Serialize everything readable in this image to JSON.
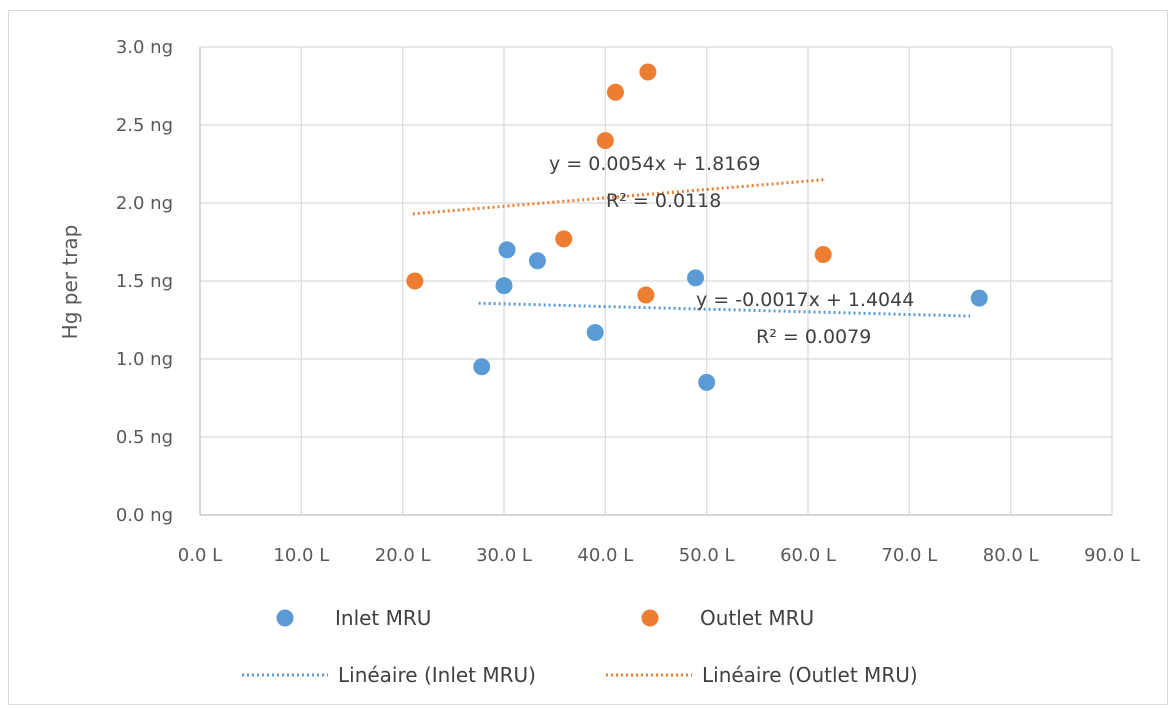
{
  "chart_data": {
    "type": "scatter",
    "title": "",
    "xlabel": "",
    "ylabel": "Hg per trap",
    "xlim": [
      0,
      90
    ],
    "ylim": [
      0,
      3.0
    ],
    "x_ticks": [
      "0.0 L",
      "10.0 L",
      "20.0 L",
      "30.0 L",
      "40.0 L",
      "50.0 L",
      "60.0 L",
      "70.0 L",
      "80.0 L",
      "90.0 L"
    ],
    "y_ticks": [
      "0.0 ng",
      "0.5 ng",
      "1.0 ng",
      "1.5 ng",
      "2.0 ng",
      "2.5 ng",
      "3.0 ng"
    ],
    "grid": true,
    "legend_position": "bottom",
    "series": [
      {
        "name": "Inlet MRU",
        "color": "#5b9bd5",
        "points": [
          {
            "x": 27.8,
            "y": 0.95
          },
          {
            "x": 30.0,
            "y": 1.47
          },
          {
            "x": 30.3,
            "y": 1.7
          },
          {
            "x": 33.3,
            "y": 1.63
          },
          {
            "x": 39.0,
            "y": 1.17
          },
          {
            "x": 48.9,
            "y": 1.52
          },
          {
            "x": 50.0,
            "y": 0.85
          },
          {
            "x": 76.9,
            "y": 1.39
          }
        ]
      },
      {
        "name": "Outlet MRU",
        "color": "#ed7d31",
        "points": [
          {
            "x": 21.2,
            "y": 1.5
          },
          {
            "x": 35.9,
            "y": 1.77
          },
          {
            "x": 40.0,
            "y": 2.4
          },
          {
            "x": 41.0,
            "y": 2.71
          },
          {
            "x": 44.0,
            "y": 1.41
          },
          {
            "x": 44.2,
            "y": 2.84
          },
          {
            "x": 61.5,
            "y": 1.67
          }
        ]
      }
    ],
    "trendlines": [
      {
        "name": "Linéaire (Inlet MRU)",
        "color": "#5b9bd5",
        "slope": -0.0017,
        "intercept": 1.4044,
        "x_range": [
          27.5,
          76.0
        ],
        "equation": "y = -0.0017x + 1.4044",
        "r2": "R² = 0.0079"
      },
      {
        "name": "Linéaire (Outlet MRU)",
        "color": "#ed7d31",
        "slope": 0.0054,
        "intercept": 1.8169,
        "x_range": [
          21.0,
          61.5
        ],
        "equation": "y = 0.0054x + 1.8169",
        "r2": "R² = 0.0118"
      }
    ]
  }
}
